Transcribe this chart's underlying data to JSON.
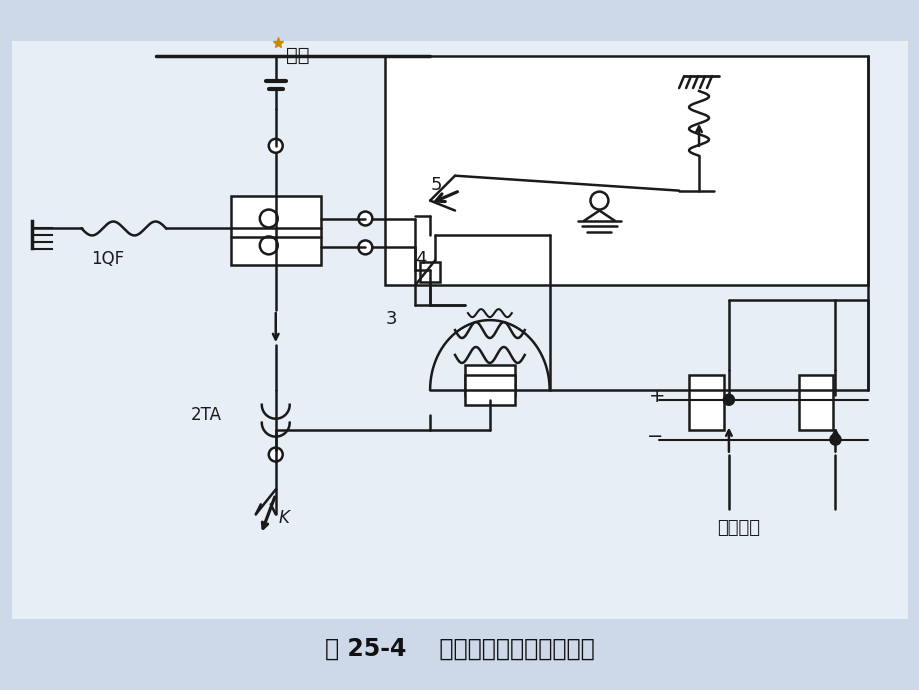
{
  "title": "图 25-4    过电流保护的原理示意图",
  "bg_color": "#cdd9e8",
  "line_color": "#1a1a1a",
  "title_fontsize": 17,
  "label_1QF": "1QF",
  "label_2TA": "2TA",
  "label_3": "3",
  "label_4": "4",
  "label_5": "5",
  "label_K": "K",
  "label_busbar": "母线",
  "label_power": "操作电源"
}
